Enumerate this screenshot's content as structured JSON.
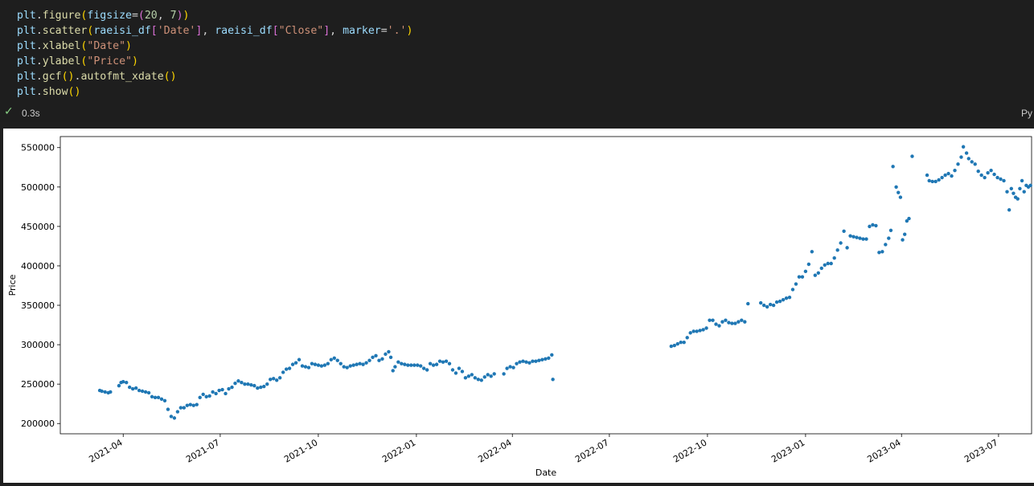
{
  "code_lines": [
    [
      {
        "t": "plt",
        "c": "k"
      },
      {
        "t": ".",
        "c": "w"
      },
      {
        "t": "figure",
        "c": "f"
      },
      {
        "t": "(",
        "c": "p"
      },
      {
        "t": "figsize",
        "c": "k"
      },
      {
        "t": "=",
        "c": "w"
      },
      {
        "t": "(",
        "c": "pp"
      },
      {
        "t": "20",
        "c": "n"
      },
      {
        "t": ", ",
        "c": "w"
      },
      {
        "t": "7",
        "c": "n"
      },
      {
        "t": ")",
        "c": "pp"
      },
      {
        "t": ")",
        "c": "p"
      }
    ],
    [
      {
        "t": "plt",
        "c": "k"
      },
      {
        "t": ".",
        "c": "w"
      },
      {
        "t": "scatter",
        "c": "f"
      },
      {
        "t": "(",
        "c": "p"
      },
      {
        "t": "raeisi_df",
        "c": "k"
      },
      {
        "t": "[",
        "c": "pp"
      },
      {
        "t": "'Date'",
        "c": "s"
      },
      {
        "t": "]",
        "c": "pp"
      },
      {
        "t": ", ",
        "c": "w"
      },
      {
        "t": "raeisi_df",
        "c": "k"
      },
      {
        "t": "[",
        "c": "pp"
      },
      {
        "t": "\"Close\"",
        "c": "s"
      },
      {
        "t": "]",
        "c": "pp"
      },
      {
        "t": ", ",
        "c": "w"
      },
      {
        "t": "marker",
        "c": "k"
      },
      {
        "t": "=",
        "c": "w"
      },
      {
        "t": "'.'",
        "c": "s"
      },
      {
        "t": ")",
        "c": "p"
      }
    ],
    [
      {
        "t": "plt",
        "c": "k"
      },
      {
        "t": ".",
        "c": "w"
      },
      {
        "t": "xlabel",
        "c": "f"
      },
      {
        "t": "(",
        "c": "p"
      },
      {
        "t": "\"Date\"",
        "c": "s"
      },
      {
        "t": ")",
        "c": "p"
      }
    ],
    [
      {
        "t": "plt",
        "c": "k"
      },
      {
        "t": ".",
        "c": "w"
      },
      {
        "t": "ylabel",
        "c": "f"
      },
      {
        "t": "(",
        "c": "p"
      },
      {
        "t": "\"Price\"",
        "c": "s"
      },
      {
        "t": ")",
        "c": "p"
      }
    ],
    [
      {
        "t": "plt",
        "c": "k"
      },
      {
        "t": ".",
        "c": "w"
      },
      {
        "t": "gcf",
        "c": "f"
      },
      {
        "t": "()",
        "c": "p"
      },
      {
        "t": ".",
        "c": "w"
      },
      {
        "t": "autofmt_xdate",
        "c": "f"
      },
      {
        "t": "()",
        "c": "p"
      }
    ],
    [
      {
        "t": "plt",
        "c": "k"
      },
      {
        "t": ".",
        "c": "w"
      },
      {
        "t": "show",
        "c": "f"
      },
      {
        "t": "()",
        "c": "p"
      }
    ]
  ],
  "status": {
    "check": "✓",
    "exec_time": "0.3s",
    "language": "Py"
  },
  "chart_data": {
    "type": "scatter",
    "xlabel": "Date",
    "ylabel": "Price",
    "title": "",
    "grid": false,
    "marker_color": "#1f77b4",
    "xlim": [
      "2021-02-01",
      "2023-08-01"
    ],
    "ylim": [
      187000,
      564000
    ],
    "x_ticks": [
      "2021-04",
      "2021-07",
      "2021-10",
      "2022-01",
      "2022-04",
      "2022-07",
      "2022-10",
      "2023-01",
      "2023-04",
      "2023-07"
    ],
    "y_ticks": [
      200000,
      250000,
      300000,
      350000,
      400000,
      450000,
      500000,
      550000
    ],
    "points": [
      [
        "2021-03-10",
        242000
      ],
      [
        "2021-03-12",
        241000
      ],
      [
        "2021-03-15",
        240000
      ],
      [
        "2021-03-18",
        239000
      ],
      [
        "2021-03-20",
        240000
      ],
      [
        "2021-03-28",
        248000
      ],
      [
        "2021-03-30",
        252000
      ],
      [
        "2021-04-01",
        253000
      ],
      [
        "2021-04-04",
        252000
      ],
      [
        "2021-04-07",
        246000
      ],
      [
        "2021-04-10",
        244000
      ],
      [
        "2021-04-13",
        245000
      ],
      [
        "2021-04-16",
        242000
      ],
      [
        "2021-04-19",
        241000
      ],
      [
        "2021-04-22",
        240000
      ],
      [
        "2021-04-25",
        239000
      ],
      [
        "2021-04-28",
        234000
      ],
      [
        "2021-05-01",
        233000
      ],
      [
        "2021-05-04",
        233000
      ],
      [
        "2021-05-07",
        231000
      ],
      [
        "2021-05-10",
        229000
      ],
      [
        "2021-05-13",
        218000
      ],
      [
        "2021-05-16",
        209000
      ],
      [
        "2021-05-19",
        207000
      ],
      [
        "2021-05-22",
        215000
      ],
      [
        "2021-05-25",
        220000
      ],
      [
        "2021-05-28",
        220000
      ],
      [
        "2021-05-31",
        223000
      ],
      [
        "2021-06-03",
        224000
      ],
      [
        "2021-06-06",
        223000
      ],
      [
        "2021-06-09",
        224000
      ],
      [
        "2021-06-12",
        233000
      ],
      [
        "2021-06-15",
        237000
      ],
      [
        "2021-06-18",
        234000
      ],
      [
        "2021-06-21",
        235000
      ],
      [
        "2021-06-24",
        240000
      ],
      [
        "2021-06-27",
        238000
      ],
      [
        "2021-06-30",
        242000
      ],
      [
        "2021-07-03",
        243000
      ],
      [
        "2021-07-06",
        238000
      ],
      [
        "2021-07-09",
        244000
      ],
      [
        "2021-07-12",
        246000
      ],
      [
        "2021-07-15",
        251000
      ],
      [
        "2021-07-18",
        254000
      ],
      [
        "2021-07-21",
        252000
      ],
      [
        "2021-07-24",
        250000
      ],
      [
        "2021-07-27",
        250000
      ],
      [
        "2021-07-30",
        249000
      ],
      [
        "2021-08-02",
        248000
      ],
      [
        "2021-08-05",
        245000
      ],
      [
        "2021-08-08",
        246000
      ],
      [
        "2021-08-11",
        247000
      ],
      [
        "2021-08-14",
        250000
      ],
      [
        "2021-08-17",
        256000
      ],
      [
        "2021-08-20",
        257000
      ],
      [
        "2021-08-23",
        255000
      ],
      [
        "2021-08-26",
        258000
      ],
      [
        "2021-08-29",
        265000
      ],
      [
        "2021-09-01",
        269000
      ],
      [
        "2021-09-04",
        270000
      ],
      [
        "2021-09-07",
        275000
      ],
      [
        "2021-09-10",
        277000
      ],
      [
        "2021-09-13",
        281000
      ],
      [
        "2021-09-16",
        273000
      ],
      [
        "2021-09-19",
        272000
      ],
      [
        "2021-09-22",
        271000
      ],
      [
        "2021-09-25",
        276000
      ],
      [
        "2021-09-28",
        275000
      ],
      [
        "2021-10-01",
        274000
      ],
      [
        "2021-10-04",
        273000
      ],
      [
        "2021-10-07",
        274000
      ],
      [
        "2021-10-10",
        276000
      ],
      [
        "2021-10-13",
        281000
      ],
      [
        "2021-10-16",
        283000
      ],
      [
        "2021-10-19",
        280000
      ],
      [
        "2021-10-22",
        276000
      ],
      [
        "2021-10-25",
        272000
      ],
      [
        "2021-10-28",
        271000
      ],
      [
        "2021-10-31",
        273000
      ],
      [
        "2021-11-03",
        274000
      ],
      [
        "2021-11-06",
        275000
      ],
      [
        "2021-11-09",
        276000
      ],
      [
        "2021-11-12",
        275000
      ],
      [
        "2021-11-15",
        277000
      ],
      [
        "2021-11-18",
        280000
      ],
      [
        "2021-11-21",
        284000
      ],
      [
        "2021-11-24",
        286000
      ],
      [
        "2021-11-27",
        280000
      ],
      [
        "2021-11-30",
        282000
      ],
      [
        "2021-12-03",
        288000
      ],
      [
        "2021-12-06",
        291000
      ],
      [
        "2021-12-08",
        284000
      ],
      [
        "2021-12-10",
        267000
      ],
      [
        "2021-12-12",
        272000
      ],
      [
        "2021-12-15",
        278000
      ],
      [
        "2021-12-18",
        276000
      ],
      [
        "2021-12-21",
        275000
      ],
      [
        "2021-12-24",
        274000
      ],
      [
        "2021-12-27",
        274000
      ],
      [
        "2021-12-30",
        274000
      ],
      [
        "2022-01-02",
        274000
      ],
      [
        "2022-01-05",
        273000
      ],
      [
        "2022-01-08",
        270000
      ],
      [
        "2022-01-11",
        268000
      ],
      [
        "2022-01-14",
        276000
      ],
      [
        "2022-01-17",
        274000
      ],
      [
        "2022-01-20",
        275000
      ],
      [
        "2022-01-23",
        279000
      ],
      [
        "2022-01-26",
        278000
      ],
      [
        "2022-01-29",
        279000
      ],
      [
        "2022-02-01",
        276000
      ],
      [
        "2022-02-04",
        268000
      ],
      [
        "2022-02-07",
        264000
      ],
      [
        "2022-02-10",
        270000
      ],
      [
        "2022-02-13",
        266000
      ],
      [
        "2022-02-16",
        258000
      ],
      [
        "2022-02-19",
        260000
      ],
      [
        "2022-02-22",
        262000
      ],
      [
        "2022-02-25",
        258000
      ],
      [
        "2022-02-28",
        256000
      ],
      [
        "2022-03-03",
        255000
      ],
      [
        "2022-03-06",
        259000
      ],
      [
        "2022-03-09",
        262000
      ],
      [
        "2022-03-12",
        260000
      ],
      [
        "2022-03-15",
        263000
      ],
      [
        "2022-03-24",
        263000
      ],
      [
        "2022-03-27",
        270000
      ],
      [
        "2022-03-30",
        272000
      ],
      [
        "2022-04-02",
        271000
      ],
      [
        "2022-04-05",
        276000
      ],
      [
        "2022-04-08",
        278000
      ],
      [
        "2022-04-11",
        279000
      ],
      [
        "2022-04-14",
        278000
      ],
      [
        "2022-04-17",
        277000
      ],
      [
        "2022-04-20",
        279000
      ],
      [
        "2022-04-23",
        279000
      ],
      [
        "2022-04-26",
        280000
      ],
      [
        "2022-04-29",
        281000
      ],
      [
        "2022-05-02",
        282000
      ],
      [
        "2022-05-05",
        283000
      ],
      [
        "2022-05-08",
        287000
      ],
      [
        "2022-05-09",
        256000
      ],
      [
        "2022-08-28",
        298000
      ],
      [
        "2022-08-31",
        299000
      ],
      [
        "2022-09-03",
        301000
      ],
      [
        "2022-09-06",
        303000
      ],
      [
        "2022-09-09",
        303000
      ],
      [
        "2022-09-12",
        309000
      ],
      [
        "2022-09-15",
        315000
      ],
      [
        "2022-09-18",
        317000
      ],
      [
        "2022-09-21",
        317000
      ],
      [
        "2022-09-24",
        318000
      ],
      [
        "2022-09-27",
        319000
      ],
      [
        "2022-09-30",
        321000
      ],
      [
        "2022-10-03",
        331000
      ],
      [
        "2022-10-06",
        331000
      ],
      [
        "2022-10-09",
        326000
      ],
      [
        "2022-10-12",
        324000
      ],
      [
        "2022-10-15",
        329000
      ],
      [
        "2022-10-18",
        331000
      ],
      [
        "2022-10-21",
        328000
      ],
      [
        "2022-10-24",
        327000
      ],
      [
        "2022-10-27",
        327000
      ],
      [
        "2022-10-30",
        329000
      ],
      [
        "2022-11-02",
        331000
      ],
      [
        "2022-11-05",
        329000
      ],
      [
        "2022-11-08",
        352000
      ],
      [
        "2022-11-20",
        353000
      ],
      [
        "2022-11-23",
        350000
      ],
      [
        "2022-11-26",
        348000
      ],
      [
        "2022-11-29",
        351000
      ],
      [
        "2022-12-02",
        350000
      ],
      [
        "2022-12-05",
        354000
      ],
      [
        "2022-12-08",
        355000
      ],
      [
        "2022-12-11",
        357000
      ],
      [
        "2022-12-14",
        359000
      ],
      [
        "2022-12-17",
        360000
      ],
      [
        "2022-12-20",
        370000
      ],
      [
        "2022-12-23",
        377000
      ],
      [
        "2022-12-26",
        386000
      ],
      [
        "2022-12-29",
        386000
      ],
      [
        "2023-01-01",
        393000
      ],
      [
        "2023-01-04",
        402000
      ],
      [
        "2023-01-07",
        418000
      ],
      [
        "2023-01-10",
        388000
      ],
      [
        "2023-01-13",
        391000
      ],
      [
        "2023-01-16",
        397000
      ],
      [
        "2023-01-19",
        401000
      ],
      [
        "2023-01-22",
        403000
      ],
      [
        "2023-01-25",
        403000
      ],
      [
        "2023-01-28",
        410000
      ],
      [
        "2023-01-31",
        420000
      ],
      [
        "2023-02-03",
        429000
      ],
      [
        "2023-02-06",
        444000
      ],
      [
        "2023-02-09",
        423000
      ],
      [
        "2023-02-12",
        438000
      ],
      [
        "2023-02-15",
        437000
      ],
      [
        "2023-02-18",
        436000
      ],
      [
        "2023-02-21",
        435000
      ],
      [
        "2023-02-24",
        434000
      ],
      [
        "2023-02-27",
        434000
      ],
      [
        "2023-03-02",
        450000
      ],
      [
        "2023-03-05",
        452000
      ],
      [
        "2023-03-08",
        451000
      ],
      [
        "2023-03-11",
        417000
      ],
      [
        "2023-03-14",
        418000
      ],
      [
        "2023-03-17",
        427000
      ],
      [
        "2023-03-20",
        435000
      ],
      [
        "2023-03-22",
        445000
      ],
      [
        "2023-03-24",
        526000
      ],
      [
        "2023-03-27",
        500000
      ],
      [
        "2023-03-29",
        493000
      ],
      [
        "2023-03-31",
        487000
      ],
      [
        "2023-04-02",
        433000
      ],
      [
        "2023-04-04",
        440000
      ],
      [
        "2023-04-06",
        457000
      ],
      [
        "2023-04-08",
        460000
      ],
      [
        "2023-04-11",
        539000
      ],
      [
        "2023-04-25",
        515000
      ],
      [
        "2023-04-27",
        508000
      ],
      [
        "2023-04-30",
        507000
      ],
      [
        "2023-05-03",
        507000
      ],
      [
        "2023-05-06",
        509000
      ],
      [
        "2023-05-09",
        512000
      ],
      [
        "2023-05-12",
        515000
      ],
      [
        "2023-05-15",
        517000
      ],
      [
        "2023-05-18",
        514000
      ],
      [
        "2023-05-21",
        521000
      ],
      [
        "2023-05-24",
        529000
      ],
      [
        "2023-05-27",
        538000
      ],
      [
        "2023-05-29",
        551000
      ],
      [
        "2023-06-01",
        543000
      ],
      [
        "2023-06-03",
        536000
      ],
      [
        "2023-06-06",
        532000
      ],
      [
        "2023-06-09",
        529000
      ],
      [
        "2023-06-12",
        520000
      ],
      [
        "2023-06-15",
        515000
      ],
      [
        "2023-06-18",
        512000
      ],
      [
        "2023-06-21",
        518000
      ],
      [
        "2023-06-24",
        521000
      ],
      [
        "2023-06-27",
        516000
      ],
      [
        "2023-06-30",
        512000
      ],
      [
        "2023-07-03",
        510000
      ],
      [
        "2023-07-06",
        508000
      ],
      [
        "2023-07-09",
        494000
      ],
      [
        "2023-07-11",
        471000
      ],
      [
        "2023-07-13",
        498000
      ],
      [
        "2023-07-15",
        492000
      ],
      [
        "2023-07-17",
        487000
      ],
      [
        "2023-07-19",
        485000
      ],
      [
        "2023-07-21",
        498000
      ],
      [
        "2023-07-23",
        508000
      ],
      [
        "2023-07-25",
        494000
      ],
      [
        "2023-07-27",
        502000
      ],
      [
        "2023-07-29",
        500000
      ],
      [
        "2023-07-31",
        502000
      ]
    ]
  }
}
